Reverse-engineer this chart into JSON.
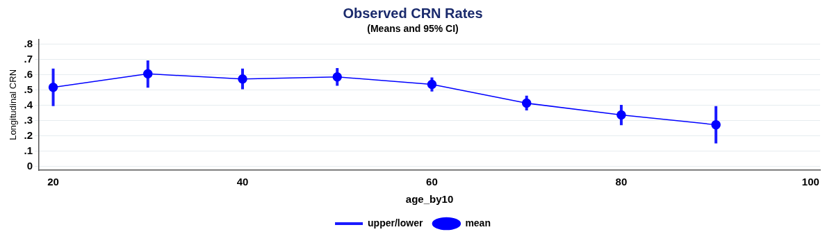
{
  "chart_data": {
    "type": "line",
    "title": "Observed CRN Rates",
    "subtitle": "(Means and 95% CI)",
    "xlabel": "age_by10",
    "ylabel": "Longitudinal CRN",
    "x": [
      20,
      30,
      40,
      50,
      60,
      70,
      80,
      90
    ],
    "series": [
      {
        "name": "mean",
        "color": "#0000ff",
        "marker": "circle",
        "values": [
          0.517,
          0.605,
          0.571,
          0.585,
          0.536,
          0.413,
          0.336,
          0.272
        ]
      },
      {
        "name": "upper/lower",
        "color": "#1a1aff",
        "marker": "none",
        "x": [
          20,
          20,
          null,
          30,
          30,
          null,
          40,
          40,
          null,
          50,
          50,
          null,
          60,
          60,
          null,
          70,
          70,
          null,
          80,
          80,
          null,
          90,
          90
        ],
        "values": [
          0.394,
          0.639,
          null,
          0.515,
          0.693,
          null,
          0.504,
          0.639,
          null,
          0.527,
          0.643,
          null,
          0.49,
          0.581,
          null,
          0.366,
          0.462,
          null,
          0.269,
          0.402,
          null,
          0.15,
          0.394
        ]
      }
    ],
    "xlim": [
      18.5,
      101
    ],
    "xticks": [
      20,
      40,
      60,
      80,
      100
    ],
    "ylim": [
      -0.025,
      0.83
    ],
    "yticks": [
      {
        "value": 0,
        "label": "0"
      },
      {
        "value": 0.1,
        "label": ".1"
      },
      {
        "value": 0.2,
        "label": ".2"
      },
      {
        "value": 0.3,
        "label": ".3"
      },
      {
        "value": 0.4,
        "label": ".4"
      },
      {
        "value": 0.5,
        "label": ".5"
      },
      {
        "value": 0.6,
        "label": ".6"
      },
      {
        "value": 0.7,
        "label": ".7"
      },
      {
        "value": 0.8,
        "label": ".8"
      }
    ],
    "grid": "y",
    "legend": "bottom"
  }
}
